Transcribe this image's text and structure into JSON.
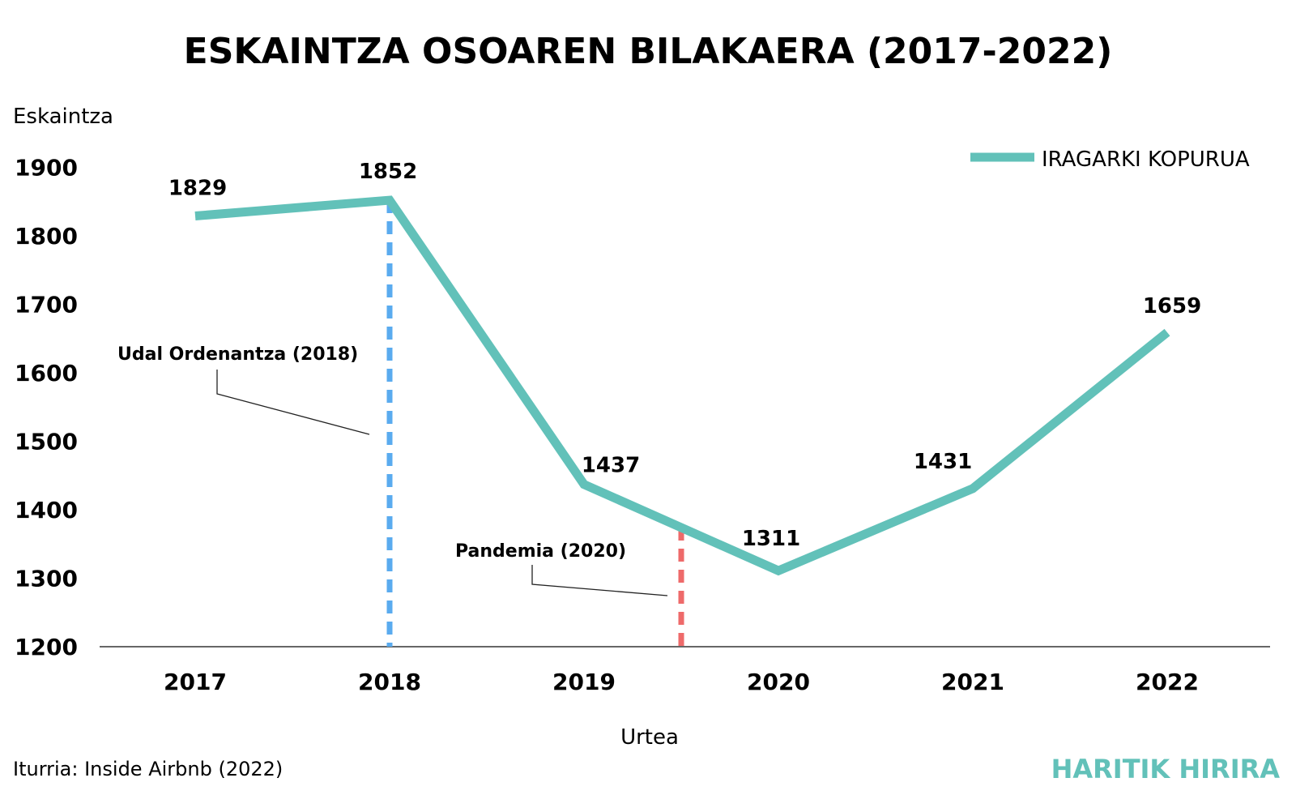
{
  "chart_data": {
    "type": "line",
    "title": "ESKAINTZA OSOAREN BILAKAERA (2017-2022)",
    "ylabel": "Eskaintza",
    "xlabel": "Urtea",
    "categories": [
      "2017",
      "2018",
      "2019",
      "2020",
      "2021",
      "2022"
    ],
    "series": [
      {
        "name": "IRAGARKI KOPURUA",
        "values": [
          1829,
          1852,
          1437,
          1311,
          1431,
          1659
        ]
      }
    ],
    "data_labels": [
      "1829",
      "1852",
      "1437",
      "1311",
      "1431",
      "1659"
    ],
    "ylim": [
      1200,
      1900
    ],
    "yticks": [
      "1900",
      "1800",
      "1700",
      "1600",
      "1500",
      "1400",
      "1300",
      "1200"
    ],
    "grid": false,
    "legend_position": "top-right",
    "annotations": [
      {
        "label": "Udal Ordenantza (2018)",
        "x": 2018,
        "color": "#5aabef",
        "style": "dashed"
      },
      {
        "label": "Pandemia (2020)",
        "x": 2019.5,
        "color": "#ee6a6a",
        "style": "dashed"
      }
    ],
    "line_color": "#62c1b9"
  },
  "footer": {
    "source": "Iturria: Inside Airbnb (2022)",
    "brand": "HARITIK HIRIRA"
  },
  "colors": {
    "line": "#62c1b9",
    "brand": "#62c1b9",
    "text": "#111111",
    "axis": "#333333"
  }
}
